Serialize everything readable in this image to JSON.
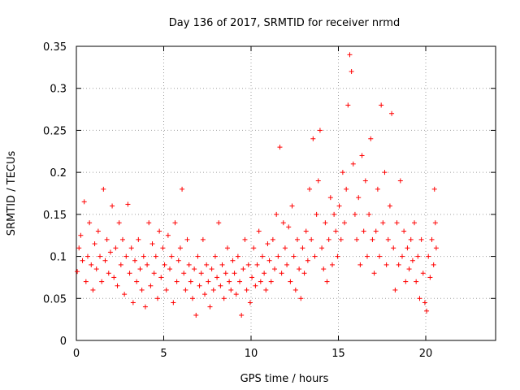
{
  "chart_data": {
    "type": "scatter",
    "title": "Day 136 of 2017, SRMTID for receiver nrmd",
    "xlabel": "GPS time / hours",
    "ylabel": "SRMTID / TECUs",
    "xlim": [
      0,
      24
    ],
    "ylim": [
      0,
      0.35
    ],
    "x_ticks": [
      "0",
      "5",
      "10",
      "15",
      "20"
    ],
    "x_tick_values": [
      0,
      5,
      10,
      15,
      20
    ],
    "y_ticks": [
      "0",
      "0.05",
      "0.1",
      "0.15",
      "0.2",
      "0.25",
      "0.3",
      "0.35"
    ],
    "y_tick_values": [
      0,
      0.05,
      0.1,
      0.15,
      0.2,
      0.25,
      0.3,
      0.35
    ],
    "grid": true,
    "marker": "plus",
    "color": "#ff0000",
    "series": [
      {
        "name": "SRMTID",
        "points": [
          [
            0.05,
            0.082
          ],
          [
            0.15,
            0.11
          ],
          [
            0.25,
            0.125
          ],
          [
            0.35,
            0.095
          ],
          [
            0.45,
            0.165
          ],
          [
            0.55,
            0.07
          ],
          [
            0.65,
            0.1
          ],
          [
            0.75,
            0.14
          ],
          [
            0.85,
            0.09
          ],
          [
            0.95,
            0.06
          ],
          [
            1.05,
            0.115
          ],
          [
            1.15,
            0.085
          ],
          [
            1.25,
            0.13
          ],
          [
            1.35,
            0.1
          ],
          [
            1.45,
            0.07
          ],
          [
            1.55,
            0.18
          ],
          [
            1.65,
            0.095
          ],
          [
            1.75,
            0.12
          ],
          [
            1.85,
            0.08
          ],
          [
            1.95,
            0.105
          ],
          [
            2.05,
            0.16
          ],
          [
            2.15,
            0.075
          ],
          [
            2.25,
            0.11
          ],
          [
            2.35,
            0.065
          ],
          [
            2.45,
            0.14
          ],
          [
            2.55,
            0.09
          ],
          [
            2.65,
            0.12
          ],
          [
            2.75,
            0.055
          ],
          [
            2.85,
            0.1
          ],
          [
            2.95,
            0.162
          ],
          [
            3.05,
            0.08
          ],
          [
            3.15,
            0.11
          ],
          [
            3.25,
            0.045
          ],
          [
            3.35,
            0.095
          ],
          [
            3.45,
            0.07
          ],
          [
            3.55,
            0.12
          ],
          [
            3.65,
            0.085
          ],
          [
            3.75,
            0.06
          ],
          [
            3.85,
            0.1
          ],
          [
            3.95,
            0.04
          ],
          [
            4.05,
            0.09
          ],
          [
            4.15,
            0.14
          ],
          [
            4.25,
            0.065
          ],
          [
            4.35,
            0.115
          ],
          [
            4.45,
            0.08
          ],
          [
            4.55,
            0.1
          ],
          [
            4.65,
            0.05
          ],
          [
            4.75,
            0.13
          ],
          [
            4.85,
            0.075
          ],
          [
            4.95,
            0.11
          ],
          [
            5.05,
            0.09
          ],
          [
            5.15,
            0.06
          ],
          [
            5.25,
            0.125
          ],
          [
            5.35,
            0.085
          ],
          [
            5.45,
            0.1
          ],
          [
            5.55,
            0.045
          ],
          [
            5.65,
            0.14
          ],
          [
            5.75,
            0.07
          ],
          [
            5.85,
            0.095
          ],
          [
            5.95,
            0.11
          ],
          [
            6.05,
            0.18
          ],
          [
            6.15,
            0.08
          ],
          [
            6.25,
            0.06
          ],
          [
            6.35,
            0.12
          ],
          [
            6.45,
            0.09
          ],
          [
            6.55,
            0.07
          ],
          [
            6.65,
            0.05
          ],
          [
            6.75,
            0.085
          ],
          [
            6.85,
            0.03
          ],
          [
            6.95,
            0.1
          ],
          [
            7.05,
            0.065
          ],
          [
            7.15,
            0.08
          ],
          [
            7.25,
            0.12
          ],
          [
            7.35,
            0.055
          ],
          [
            7.45,
            0.09
          ],
          [
            7.55,
            0.07
          ],
          [
            7.65,
            0.04
          ],
          [
            7.75,
            0.085
          ],
          [
            7.85,
            0.06
          ],
          [
            7.95,
            0.1
          ],
          [
            8.05,
            0.075
          ],
          [
            8.15,
            0.14
          ],
          [
            8.25,
            0.065
          ],
          [
            8.35,
            0.09
          ],
          [
            8.45,
            0.05
          ],
          [
            8.55,
            0.08
          ],
          [
            8.65,
            0.11
          ],
          [
            8.75,
            0.07
          ],
          [
            8.85,
            0.06
          ],
          [
            8.95,
            0.095
          ],
          [
            9.05,
            0.08
          ],
          [
            9.15,
            0.055
          ],
          [
            9.25,
            0.1
          ],
          [
            9.35,
            0.07
          ],
          [
            9.45,
            0.03
          ],
          [
            9.55,
            0.085
          ],
          [
            9.65,
            0.12
          ],
          [
            9.75,
            0.06
          ],
          [
            9.85,
            0.09
          ],
          [
            9.95,
            0.045
          ],
          [
            10.05,
            0.075
          ],
          [
            10.15,
            0.11
          ],
          [
            10.25,
            0.065
          ],
          [
            10.35,
            0.09
          ],
          [
            10.45,
            0.13
          ],
          [
            10.55,
            0.07
          ],
          [
            10.65,
            0.1
          ],
          [
            10.75,
            0.08
          ],
          [
            10.85,
            0.06
          ],
          [
            10.95,
            0.115
          ],
          [
            11.05,
            0.095
          ],
          [
            11.15,
            0.07
          ],
          [
            11.25,
            0.12
          ],
          [
            11.35,
            0.085
          ],
          [
            11.45,
            0.15
          ],
          [
            11.55,
            0.1
          ],
          [
            11.65,
            0.23
          ],
          [
            11.75,
            0.08
          ],
          [
            11.85,
            0.14
          ],
          [
            11.95,
            0.11
          ],
          [
            12.05,
            0.09
          ],
          [
            12.15,
            0.135
          ],
          [
            12.25,
            0.07
          ],
          [
            12.35,
            0.16
          ],
          [
            12.45,
            0.1
          ],
          [
            12.55,
            0.06
          ],
          [
            12.65,
            0.12
          ],
          [
            12.75,
            0.085
          ],
          [
            12.85,
            0.05
          ],
          [
            12.95,
            0.11
          ],
          [
            13.05,
            0.08
          ],
          [
            13.15,
            0.13
          ],
          [
            13.25,
            0.095
          ],
          [
            13.35,
            0.18
          ],
          [
            13.45,
            0.12
          ],
          [
            13.55,
            0.24
          ],
          [
            13.65,
            0.1
          ],
          [
            13.75,
            0.15
          ],
          [
            13.85,
            0.19
          ],
          [
            13.95,
            0.25
          ],
          [
            14.05,
            0.11
          ],
          [
            14.15,
            0.085
          ],
          [
            14.25,
            0.14
          ],
          [
            14.35,
            0.07
          ],
          [
            14.45,
            0.12
          ],
          [
            14.55,
            0.17
          ],
          [
            14.65,
            0.09
          ],
          [
            14.75,
            0.15
          ],
          [
            14.85,
            0.13
          ],
          [
            14.95,
            0.1
          ],
          [
            15.05,
            0.16
          ],
          [
            15.15,
            0.12
          ],
          [
            15.25,
            0.2
          ],
          [
            15.35,
            0.14
          ],
          [
            15.45,
            0.18
          ],
          [
            15.55,
            0.28
          ],
          [
            15.65,
            0.34
          ],
          [
            15.75,
            0.32
          ],
          [
            15.85,
            0.21
          ],
          [
            15.95,
            0.15
          ],
          [
            16.05,
            0.12
          ],
          [
            16.15,
            0.17
          ],
          [
            16.25,
            0.09
          ],
          [
            16.35,
            0.22
          ],
          [
            16.45,
            0.13
          ],
          [
            16.55,
            0.19
          ],
          [
            16.65,
            0.1
          ],
          [
            16.75,
            0.15
          ],
          [
            16.85,
            0.24
          ],
          [
            16.95,
            0.12
          ],
          [
            17.05,
            0.08
          ],
          [
            17.15,
            0.13
          ],
          [
            17.25,
            0.18
          ],
          [
            17.35,
            0.1
          ],
          [
            17.45,
            0.28
          ],
          [
            17.55,
            0.14
          ],
          [
            17.65,
            0.2
          ],
          [
            17.75,
            0.09
          ],
          [
            17.85,
            0.12
          ],
          [
            17.95,
            0.16
          ],
          [
            18.05,
            0.27
          ],
          [
            18.15,
            0.11
          ],
          [
            18.25,
            0.06
          ],
          [
            18.35,
            0.14
          ],
          [
            18.45,
            0.09
          ],
          [
            18.55,
            0.19
          ],
          [
            18.65,
            0.1
          ],
          [
            18.75,
            0.13
          ],
          [
            18.85,
            0.07
          ],
          [
            18.95,
            0.11
          ],
          [
            19.05,
            0.085
          ],
          [
            19.15,
            0.12
          ],
          [
            19.25,
            0.095
          ],
          [
            19.35,
            0.14
          ],
          [
            19.45,
            0.07
          ],
          [
            19.55,
            0.1
          ],
          [
            19.65,
            0.05
          ],
          [
            19.75,
            0.12
          ],
          [
            19.85,
            0.08
          ],
          [
            19.95,
            0.045
          ],
          [
            20.05,
            0.035
          ],
          [
            20.15,
            0.1
          ],
          [
            20.25,
            0.075
          ],
          [
            20.35,
            0.12
          ],
          [
            20.45,
            0.09
          ],
          [
            20.5,
            0.18
          ],
          [
            20.55,
            0.14
          ],
          [
            20.6,
            0.11
          ]
        ]
      }
    ]
  }
}
